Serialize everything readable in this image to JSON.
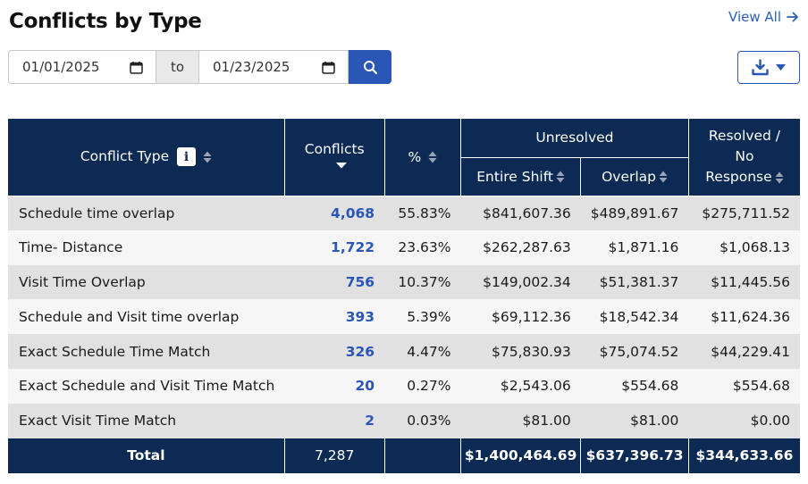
{
  "page": {
    "title": "Conflicts by Type",
    "view_all": "View All"
  },
  "filters": {
    "from_date": "01/01/2025",
    "to_label": "to",
    "to_date": "01/23/2025"
  },
  "table": {
    "headers": {
      "conflict_type": "Conflict Type",
      "conflicts": "Conflicts",
      "percent": "%",
      "unresolved": "Unresolved",
      "entire_shift": "Entire Shift",
      "overlap": "Overlap",
      "resolved_line1": "Resolved /",
      "resolved_line2": "No",
      "resolved_line3": "Response"
    },
    "rows": [
      {
        "type": "Schedule time overlap",
        "conflicts": "4,068",
        "percent": "55.83%",
        "entire_shift": "$841,607.36",
        "overlap": "$489,891.67",
        "resolved": "$275,711.52"
      },
      {
        "type": "Time- Distance",
        "conflicts": "1,722",
        "percent": "23.63%",
        "entire_shift": "$262,287.63",
        "overlap": "$1,871.16",
        "resolved": "$1,068.13"
      },
      {
        "type": "Visit Time Overlap",
        "conflicts": "756",
        "percent": "10.37%",
        "entire_shift": "$149,002.34",
        "overlap": "$51,381.37",
        "resolved": "$11,445.56"
      },
      {
        "type": "Schedule and Visit time overlap",
        "conflicts": "393",
        "percent": "5.39%",
        "entire_shift": "$69,112.36",
        "overlap": "$18,542.34",
        "resolved": "$11,624.36"
      },
      {
        "type": "Exact Schedule Time Match",
        "conflicts": "326",
        "percent": "4.47%",
        "entire_shift": "$75,830.93",
        "overlap": "$75,074.52",
        "resolved": "$44,229.41"
      },
      {
        "type": "Exact Schedule and Visit Time Match",
        "conflicts": "20",
        "percent": "0.27%",
        "entire_shift": "$2,543.06",
        "overlap": "$554.68",
        "resolved": "$554.68"
      },
      {
        "type": "Exact Visit Time Match",
        "conflicts": "2",
        "percent": "0.03%",
        "entire_shift": "$81.00",
        "overlap": "$81.00",
        "resolved": "$0.00"
      }
    ],
    "total": {
      "label": "Total",
      "conflicts": "7,287",
      "percent": "",
      "entire_shift": "$1,400,464.69",
      "overlap": "$637,396.73",
      "resolved": "$344,633.66"
    }
  },
  "colors": {
    "header_bg": "#0c2a54",
    "accent": "#2a56b5",
    "row_odd": "#e1e1e1",
    "row_even": "#f6f6f6"
  }
}
